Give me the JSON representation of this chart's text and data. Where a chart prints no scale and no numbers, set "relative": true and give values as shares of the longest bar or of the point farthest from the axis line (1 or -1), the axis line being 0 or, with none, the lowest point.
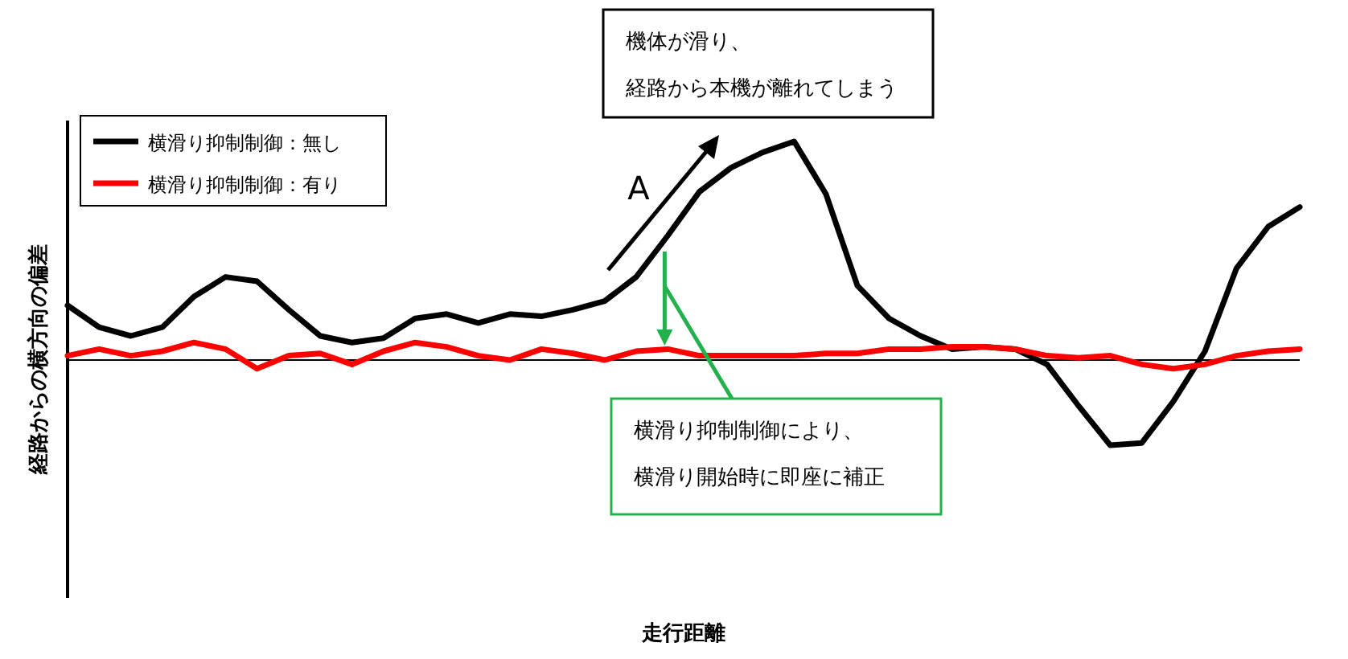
{
  "chart_data": {
    "type": "line",
    "relative": true,
    "ylabel": "経路からの横方向の偏差",
    "categories": [
      null,
      null,
      null,
      null,
      null,
      null,
      null,
      null,
      null,
      null,
      null,
      null,
      null,
      null,
      null,
      null,
      null,
      null,
      null,
      null,
      null,
      null,
      null,
      null,
      null,
      null,
      null,
      null,
      null,
      null,
      null,
      null,
      null,
      null,
      null,
      null,
      null,
      null,
      null,
      null
    ],
    "series": [
      {
        "name": "横滑り抑制制御：無し",
        "color": "#000000",
        "values": [
          0.25,
          0.15,
          0.11,
          0.15,
          0.29,
          0.38,
          0.36,
          0.23,
          0.11,
          0.08,
          0.1,
          0.19,
          0.21,
          0.17,
          0.21,
          0.2,
          0.23,
          0.27,
          0.38,
          0.57,
          0.77,
          0.88,
          0.95,
          1.0,
          0.76,
          0.34,
          0.19,
          0.11,
          0.05,
          0.06,
          0.05,
          -0.02,
          -0.21,
          -0.39,
          -0.38,
          -0.19,
          0.04,
          0.42,
          0.61,
          0.7
        ]
      },
      {
        "name": "横滑り抑制制御：有り",
        "color": "#ff0000",
        "values": [
          0.02,
          0.05,
          0.02,
          0.04,
          0.08,
          0.05,
          -0.04,
          0.02,
          0.03,
          -0.02,
          0.04,
          0.08,
          0.06,
          0.02,
          0.0,
          0.05,
          0.03,
          0.0,
          0.04,
          0.05,
          0.02,
          0.02,
          0.02,
          0.02,
          0.03,
          0.03,
          0.05,
          0.05,
          0.06,
          0.06,
          0.05,
          0.02,
          0.01,
          0.02,
          -0.02,
          -0.04,
          -0.02,
          0.02,
          0.04,
          0.05
        ]
      }
    ],
    "annotations": [
      "機体が滑り、",
      "経路から本機が離れてしまう",
      "A",
      "横滑り抑制制御により、",
      "横滑り開始時に即座に補正",
      "走行距離"
    ],
    "legend": "top left",
    "grid": false,
    "marker": "none",
    "line_style": "solid"
  }
}
